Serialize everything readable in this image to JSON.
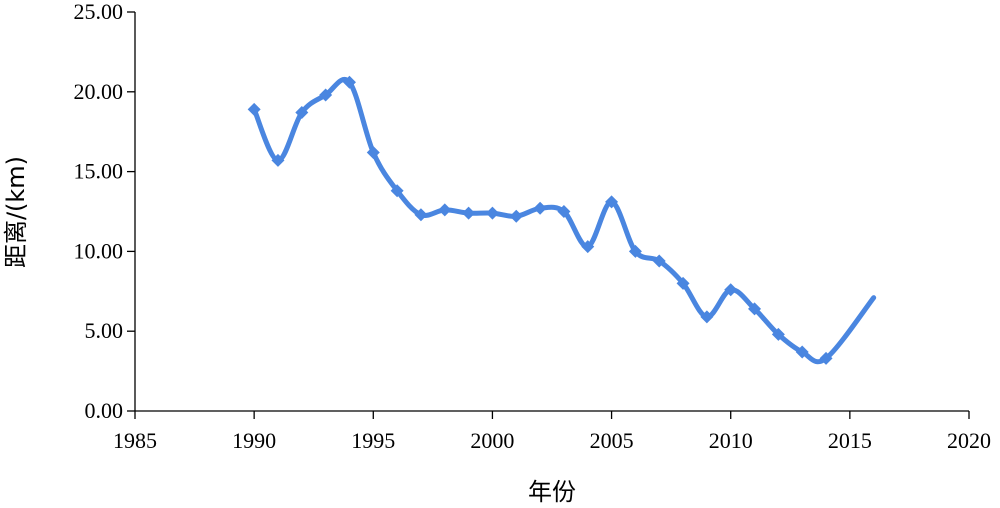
{
  "chart_data": {
    "type": "line",
    "title": "",
    "xlabel": "年份",
    "ylabel": "距离/(km)",
    "xlim": [
      1985,
      2020
    ],
    "ylim": [
      0,
      25
    ],
    "x_ticks": [
      "1985",
      "1990",
      "1995",
      "2000",
      "2005",
      "2010",
      "2015",
      "2020"
    ],
    "y_ticks": [
      "0.00",
      "5.00",
      "10.00",
      "15.00",
      "20.00",
      "25.00"
    ],
    "grid": false,
    "legend": "none",
    "color": "#4a86e0",
    "smooth": true,
    "marker": "diamond",
    "series": [
      {
        "x": [
          1990,
          1991,
          1992,
          1993,
          1994,
          1995,
          1996,
          1997,
          1998,
          1999,
          2000,
          2001,
          2002,
          2003,
          2004,
          2005,
          2006,
          2007,
          2008,
          2009,
          2010,
          2011,
          2012,
          2013,
          2014,
          2016
        ],
        "values": [
          18.9,
          15.7,
          18.7,
          19.8,
          20.6,
          16.2,
          13.8,
          12.3,
          12.6,
          12.4,
          12.4,
          12.2,
          12.7,
          12.5,
          10.3,
          13.1,
          10.0,
          9.4,
          8.0,
          5.9,
          7.6,
          6.4,
          4.8,
          3.7,
          3.3,
          7.1
        ]
      }
    ],
    "end_marker": false
  }
}
